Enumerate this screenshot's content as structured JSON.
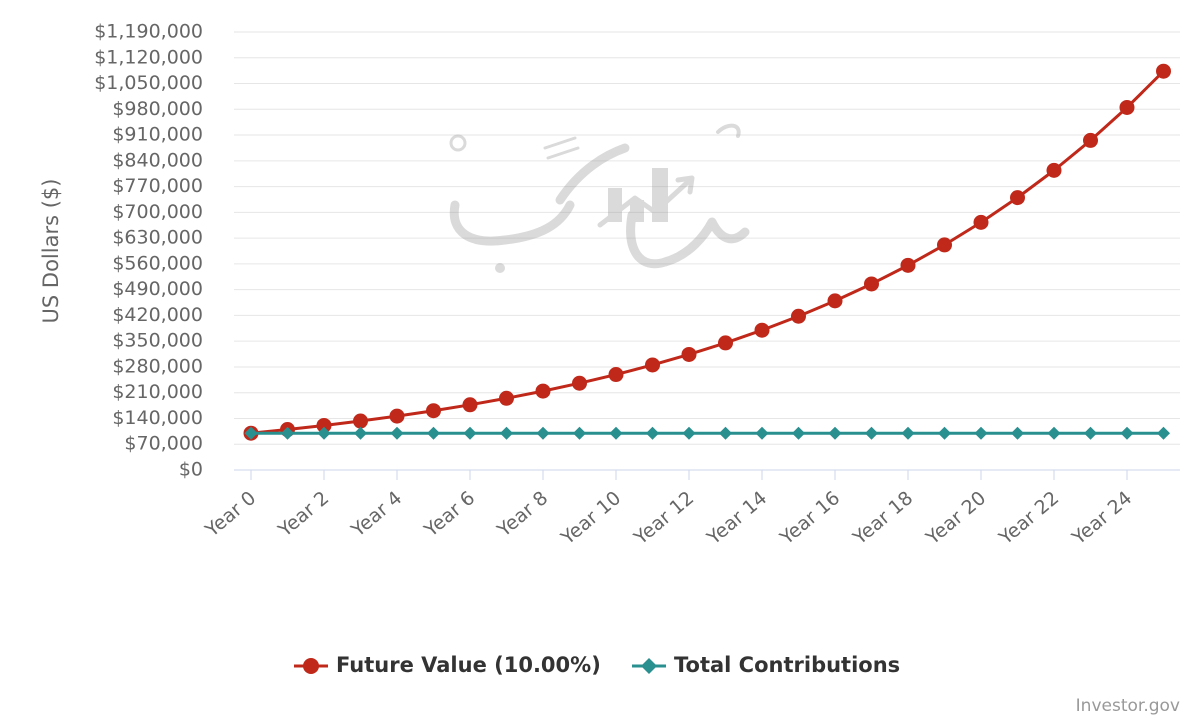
{
  "chart_data": {
    "type": "line",
    "ylabel": "US Dollars ($)",
    "ylim": [
      0,
      1190000
    ],
    "y_ticks": [
      0,
      70000,
      140000,
      210000,
      280000,
      350000,
      420000,
      490000,
      560000,
      630000,
      700000,
      770000,
      840000,
      910000,
      980000,
      1050000,
      1120000,
      1190000
    ],
    "y_tick_labels": [
      "$0",
      "$70,000",
      "$140,000",
      "$210,000",
      "$280,000",
      "$350,000",
      "$420,000",
      "$490,000",
      "$560,000",
      "$630,000",
      "$700,000",
      "$770,000",
      "$840,000",
      "$910,000",
      "$980,000",
      "$1,050,000",
      "$1,120,000",
      "$1,190,000"
    ],
    "x_labels": [
      "Year 0",
      "Year 2",
      "Year 4",
      "Year 6",
      "Year 8",
      "Year 10",
      "Year 12",
      "Year 14",
      "Year 16",
      "Year 18",
      "Year 20",
      "Year 22",
      "Year 24"
    ],
    "x_label_years": [
      0,
      2,
      4,
      6,
      8,
      10,
      12,
      14,
      16,
      18,
      20,
      22,
      24
    ],
    "x": [
      0,
      1,
      2,
      3,
      4,
      5,
      6,
      7,
      8,
      9,
      10,
      11,
      12,
      13,
      14,
      15,
      16,
      17,
      18,
      19,
      20,
      21,
      22,
      23,
      24,
      25
    ],
    "series": [
      {
        "name": "Future Value (10.00%)",
        "color": "#c0281a",
        "marker": "circle",
        "values": [
          100000,
          110000,
          121000,
          133100,
          146410,
          161051,
          177156,
          194872,
          214359,
          235795,
          259374,
          285312,
          313843,
          345227,
          379750,
          417725,
          459497,
          505447,
          555992,
          611591,
          672750,
          740025,
          814027,
          895430,
          984973,
          1083471
        ]
      },
      {
        "name": "Total Contributions",
        "color": "#2a8f8f",
        "marker": "diamond",
        "values": [
          100000,
          100000,
          100000,
          100000,
          100000,
          100000,
          100000,
          100000,
          100000,
          100000,
          100000,
          100000,
          100000,
          100000,
          100000,
          100000,
          100000,
          100000,
          100000,
          100000,
          100000,
          100000,
          100000,
          100000,
          100000,
          100000
        ]
      }
    ],
    "grid": true,
    "legend": "bottom-center"
  },
  "credit": "Investor.gov",
  "colors": {
    "grid": "#e6e6e6",
    "axis": "#ccd6eb",
    "tick_text": "#666666"
  },
  "watermark_icon": "brand-logo-watermark"
}
